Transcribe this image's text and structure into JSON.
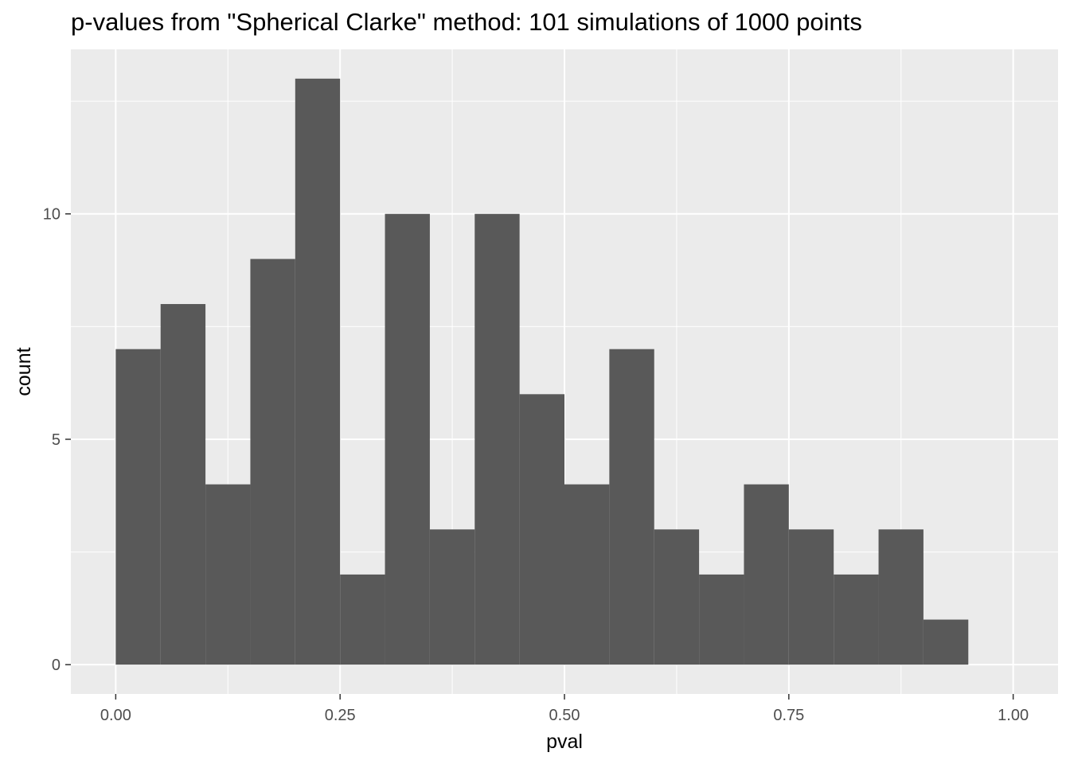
{
  "chart_data": {
    "type": "histogram",
    "title": "p-values from \"Spherical Clarke\" method: 101 simulations of 1000 points",
    "xlabel": "pval",
    "ylabel": "count",
    "bins": [
      {
        "x0": 0.0,
        "x1": 0.05,
        "count": 7
      },
      {
        "x0": 0.05,
        "x1": 0.1,
        "count": 8
      },
      {
        "x0": 0.1,
        "x1": 0.15,
        "count": 4
      },
      {
        "x0": 0.15,
        "x1": 0.2,
        "count": 9
      },
      {
        "x0": 0.2,
        "x1": 0.25,
        "count": 13
      },
      {
        "x0": 0.25,
        "x1": 0.3,
        "count": 2
      },
      {
        "x0": 0.3,
        "x1": 0.35,
        "count": 10
      },
      {
        "x0": 0.35,
        "x1": 0.4,
        "count": 3
      },
      {
        "x0": 0.4,
        "x1": 0.45,
        "count": 10
      },
      {
        "x0": 0.45,
        "x1": 0.5,
        "count": 6
      },
      {
        "x0": 0.5,
        "x1": 0.55,
        "count": 4
      },
      {
        "x0": 0.55,
        "x1": 0.6,
        "count": 7
      },
      {
        "x0": 0.6,
        "x1": 0.65,
        "count": 3
      },
      {
        "x0": 0.65,
        "x1": 0.7,
        "count": 2
      },
      {
        "x0": 0.7,
        "x1": 0.75,
        "count": 4
      },
      {
        "x0": 0.75,
        "x1": 0.8,
        "count": 3
      },
      {
        "x0": 0.8,
        "x1": 0.85,
        "count": 2
      },
      {
        "x0": 0.85,
        "x1": 0.9,
        "count": 3
      },
      {
        "x0": 0.9,
        "x1": 0.95,
        "count": 1
      }
    ],
    "xlim": [
      -0.05,
      1.05
    ],
    "ylim": [
      -0.65,
      13.65
    ],
    "x_ticks": [
      {
        "value": 0.0,
        "label": "0.00"
      },
      {
        "value": 0.25,
        "label": "0.25"
      },
      {
        "value": 0.5,
        "label": "0.50"
      },
      {
        "value": 0.75,
        "label": "0.75"
      },
      {
        "value": 1.0,
        "label": "1.00"
      }
    ],
    "y_ticks": [
      {
        "value": 0,
        "label": "0"
      },
      {
        "value": 5,
        "label": "5"
      },
      {
        "value": 10,
        "label": "10"
      }
    ],
    "x_minor": [
      0.125,
      0.375,
      0.625,
      0.875
    ],
    "y_minor": [
      2.5,
      7.5,
      12.5
    ],
    "grid": true,
    "colors": {
      "panel_background": "#ebebeb",
      "grid": "#ffffff",
      "bar_fill": "#595959",
      "tick": "#333333"
    }
  }
}
